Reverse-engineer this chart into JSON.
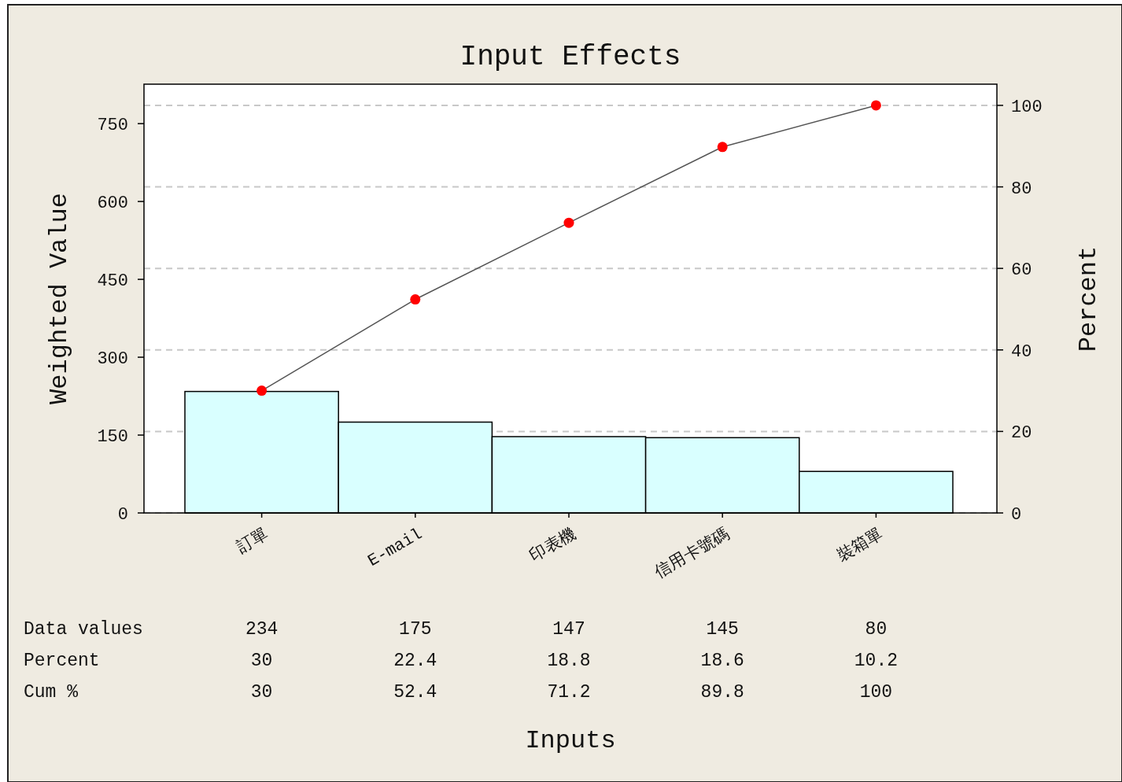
{
  "chart_data": {
    "type": "bar",
    "title": "Input Effects",
    "ylabel": "Weighted Value",
    "y2label": "Percent",
    "categories": [
      "訂單",
      "E-mail",
      "印表機",
      "信用卡號碼",
      "裝箱單"
    ],
    "series": [
      {
        "color": "#d9ffff",
        "values": [
          234,
          175,
          147,
          145,
          80
        ]
      },
      {
        "type": "line",
        "axis": "y2",
        "color": "#ff0000",
        "marker": "circle",
        "values": [
          30,
          52.4,
          71.2,
          89.8,
          100
        ]
      }
    ],
    "ylim": [
      0,
      826
    ],
    "yticks": [
      0,
      150,
      300,
      450,
      600,
      750
    ],
    "y2lim": [
      0,
      105.2
    ],
    "y2ticks": [
      0,
      20,
      40,
      60,
      80,
      100
    ],
    "grid": true,
    "data_labels": true,
    "annotations": [
      "Data values",
      "Percent",
      "Cum %",
      "30",
      "22.4",
      "18.8",
      "18.6",
      "10.2",
      "Inputs"
    ]
  }
}
